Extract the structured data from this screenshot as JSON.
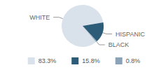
{
  "chart_data": {
    "type": "pie",
    "categories": [
      "WHITE",
      "HISPANIC",
      "BLACK"
    ],
    "values": [
      83.3,
      15.8,
      0.8
    ],
    "value_labels": [
      "83.3%",
      "15.8%",
      "0.8%"
    ],
    "colors": [
      "#d9e1ea",
      "#2d5c78",
      "#8aa3b8"
    ],
    "legend": "bottom"
  }
}
